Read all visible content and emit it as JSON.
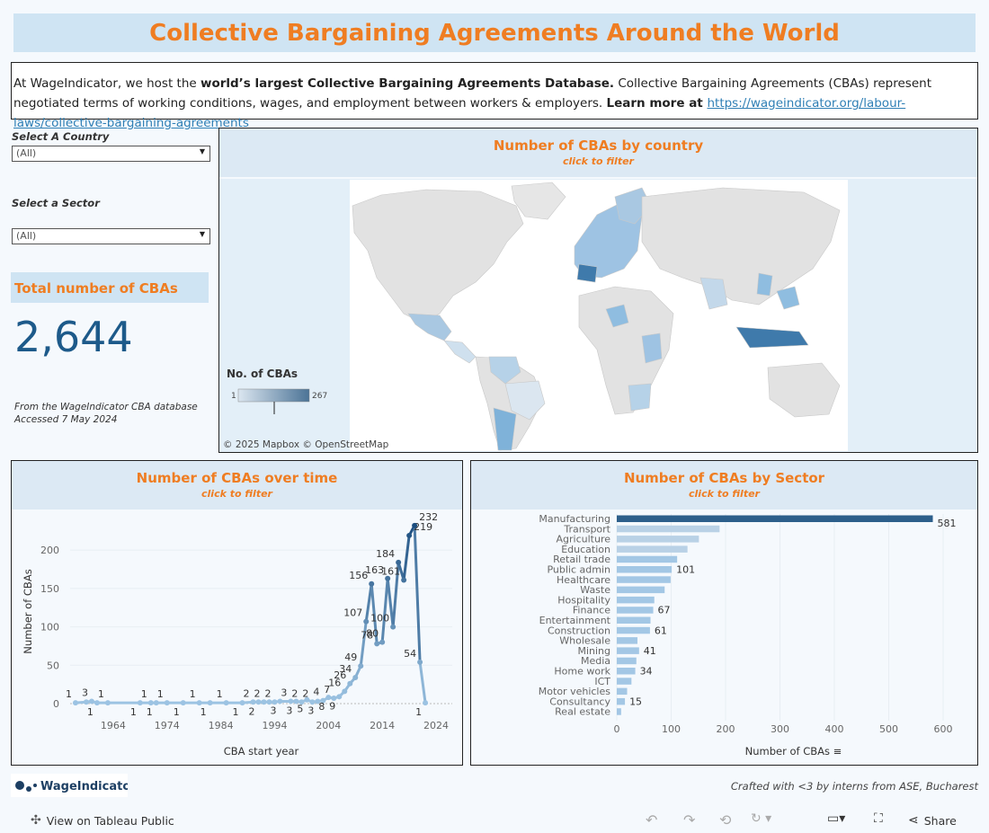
{
  "header": {
    "title": "Collective Bargaining Agreements Around the World"
  },
  "intro": {
    "t1": "At WageIndicator, we host the ",
    "b1": "world’s largest Collective Bargaining Agreements Database.",
    "t2": " Collective Bargaining Agreements (CBAs) represent negotiated terms of working conditions, wages, and employment between workers & employers. ",
    "b2": "Learn more at ",
    "link": "https://wageindicator.org/labour-laws/collective-bargaining-agreements"
  },
  "filters": {
    "country_label": "Select A Country",
    "country_value": "(All)",
    "sector_label": "Select a Sector",
    "sector_value": "(All)"
  },
  "total": {
    "label": "Total number of CBAs",
    "value": "2,644",
    "note1": "From the WageIndicator CBA database",
    "note2": "Accessed 7 May 2024"
  },
  "map": {
    "title": "Number of CBAs by country",
    "subtitle": "click to filter",
    "legend_title": "No. of CBAs",
    "legend_min": "1",
    "legend_max": "267",
    "attribution": "© 2025 Mapbox  © OpenStreetMap",
    "colors": {
      "low": "#dbe6f0",
      "high": "#4b7396",
      "land": "#e0e0e0",
      "water": "#ffffff"
    }
  },
  "time": {
    "title": "Number of CBAs over time",
    "subtitle": "click to filter"
  },
  "sector": {
    "title": "Number of CBAs by Sector",
    "subtitle": "click to filter",
    "sort_icon": "sort-descending-icon"
  },
  "chart_data": [
    {
      "type": "line",
      "xlabel": "CBA start year",
      "ylabel": "Number of CBAs",
      "xticks": [
        1964,
        1974,
        1984,
        1994,
        2004,
        2014,
        2024
      ],
      "yticks": [
        0,
        50,
        100,
        150,
        200
      ],
      "ylim": [
        0,
        240
      ],
      "xlim": [
        1956,
        2027
      ],
      "grid": true,
      "points": [
        {
          "x": 1957,
          "y": 1,
          "label": "1"
        },
        {
          "x": 1959,
          "y": 2,
          "label": ""
        },
        {
          "x": 1960,
          "y": 3,
          "label": "3"
        },
        {
          "x": 1961,
          "y": 1,
          "label": "1"
        },
        {
          "x": 1963,
          "y": 1,
          "label": "1"
        },
        {
          "x": 1969,
          "y": 1,
          "label": "1"
        },
        {
          "x": 1971,
          "y": 1,
          "label": "1"
        },
        {
          "x": 1972,
          "y": 1,
          "label": "1"
        },
        {
          "x": 1974,
          "y": 1,
          "label": "1"
        },
        {
          "x": 1977,
          "y": 1,
          "label": "1"
        },
        {
          "x": 1980,
          "y": 1,
          "label": "1"
        },
        {
          "x": 1982,
          "y": 1,
          "label": "1"
        },
        {
          "x": 1985,
          "y": 1,
          "label": "1"
        },
        {
          "x": 1988,
          "y": 1,
          "label": "1"
        },
        {
          "x": 1990,
          "y": 2,
          "label": "2"
        },
        {
          "x": 1991,
          "y": 2,
          "label": "2"
        },
        {
          "x": 1992,
          "y": 2,
          "label": "2"
        },
        {
          "x": 1993,
          "y": 2,
          "label": ""
        },
        {
          "x": 1994,
          "y": 2,
          "label": "2"
        },
        {
          "x": 1995,
          "y": 3,
          "label": "3"
        },
        {
          "x": 1997,
          "y": 3,
          "label": "3"
        },
        {
          "x": 1998,
          "y": 3,
          "label": "3"
        },
        {
          "x": 1999,
          "y": 2,
          "label": "2"
        },
        {
          "x": 2000,
          "y": 5,
          "label": "5"
        },
        {
          "x": 2001,
          "y": 2,
          "label": "2"
        },
        {
          "x": 2002,
          "y": 3,
          "label": "3"
        },
        {
          "x": 2003,
          "y": 4,
          "label": "4"
        },
        {
          "x": 2004,
          "y": 8,
          "label": "8"
        },
        {
          "x": 2005,
          "y": 7,
          "label": "7"
        },
        {
          "x": 2006,
          "y": 9,
          "label": "9"
        },
        {
          "x": 2007,
          "y": 16,
          "label": "16"
        },
        {
          "x": 2008,
          "y": 26,
          "label": "26"
        },
        {
          "x": 2009,
          "y": 34,
          "label": "34"
        },
        {
          "x": 2010,
          "y": 49,
          "label": "49"
        },
        {
          "x": 2011,
          "y": 107,
          "label": "107"
        },
        {
          "x": 2012,
          "y": 156,
          "label": "156"
        },
        {
          "x": 2013,
          "y": 78,
          "label": "78"
        },
        {
          "x": 2014,
          "y": 80,
          "label": "80"
        },
        {
          "x": 2015,
          "y": 163,
          "label": "163"
        },
        {
          "x": 2016,
          "y": 100,
          "label": "100"
        },
        {
          "x": 2017,
          "y": 184,
          "label": "184"
        },
        {
          "x": 2018,
          "y": 161,
          "label": "161"
        },
        {
          "x": 2019,
          "y": 219,
          "label": "219"
        },
        {
          "x": 2020,
          "y": 232,
          "label": "232"
        },
        {
          "x": 2021,
          "y": 54,
          "label": "54"
        },
        {
          "x": 2022,
          "y": 1,
          "label": "1"
        }
      ]
    },
    {
      "type": "bar",
      "orientation": "horizontal",
      "xlabel": "Number of CBAs",
      "xticks": [
        0,
        100,
        200,
        300,
        400,
        500,
        600
      ],
      "xlim": [
        0,
        600
      ],
      "grid": true,
      "categories": [
        "Manufacturing",
        "Transport",
        "Agriculture",
        "Education",
        "Retail trade",
        "Public admin",
        "Healthcare",
        "Waste",
        "Hospitality",
        "Finance",
        "Entertainment",
        "Construction",
        "Wholesale",
        "Mining",
        "Media",
        "Home work",
        "ICT",
        "Motor vehicles",
        "Consultancy",
        "Real estate"
      ],
      "values": [
        581,
        189,
        151,
        130,
        111,
        101,
        99,
        88,
        69,
        67,
        62,
        61,
        38,
        41,
        36,
        34,
        27,
        19,
        15,
        8
      ],
      "value_labels": [
        "581",
        "",
        "",
        "",
        "",
        "101",
        "",
        "",
        "",
        "67",
        "",
        "61",
        "",
        "41",
        "",
        "34",
        "",
        "",
        "15",
        ""
      ]
    }
  ]
}
